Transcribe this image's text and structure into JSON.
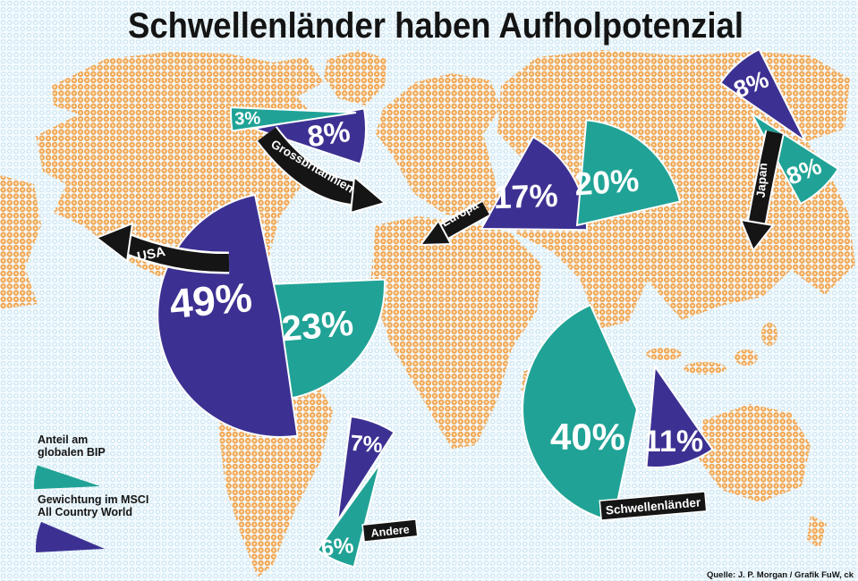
{
  "title": "Schwellenländer haben Aufholpotenzial",
  "source": "Quelle: J. P. Morgan  / Grafik FuW, ck",
  "legend": {
    "items": [
      {
        "series": "bip",
        "lines": [
          "Anteil am",
          "globalen BIP"
        ]
      },
      {
        "series": "msci",
        "lines": [
          "Gewichtung im MSCI",
          "All Country World"
        ]
      }
    ]
  },
  "colors": {
    "bip_teal": "#20a396",
    "msci_blue": "#3c3192",
    "arrow_black": "#151515",
    "land_dot": "#f0a24d",
    "land_dot_center": "#fce1b7",
    "ocean_dot": "#cbe5f2",
    "background": "#f3fafd"
  },
  "chart_data": {
    "type": "pie",
    "variant": "paired-wedge-world-map",
    "title": "Schwellenländer haben Aufholpotenzial",
    "units": "%",
    "legend_position": "bottom-left",
    "series": [
      {
        "key": "bip",
        "name": "Anteil am globalen BIP",
        "color": "#20a396"
      },
      {
        "key": "msci",
        "name": "Gewichtung im MSCI All Country World",
        "color": "#3c3192"
      }
    ],
    "regions": [
      {
        "name": "USA",
        "bip": 23,
        "msci": 49
      },
      {
        "name": "Grossbritannien",
        "bip": 3,
        "msci": 8
      },
      {
        "name": "Europa",
        "bip": 20,
        "msci": 17
      },
      {
        "name": "Japan",
        "bip": 8,
        "msci": 8
      },
      {
        "name": "Schwellenländer",
        "bip": 40,
        "msci": 11
      },
      {
        "name": "Andere",
        "bip": 6,
        "msci": 7
      }
    ]
  }
}
